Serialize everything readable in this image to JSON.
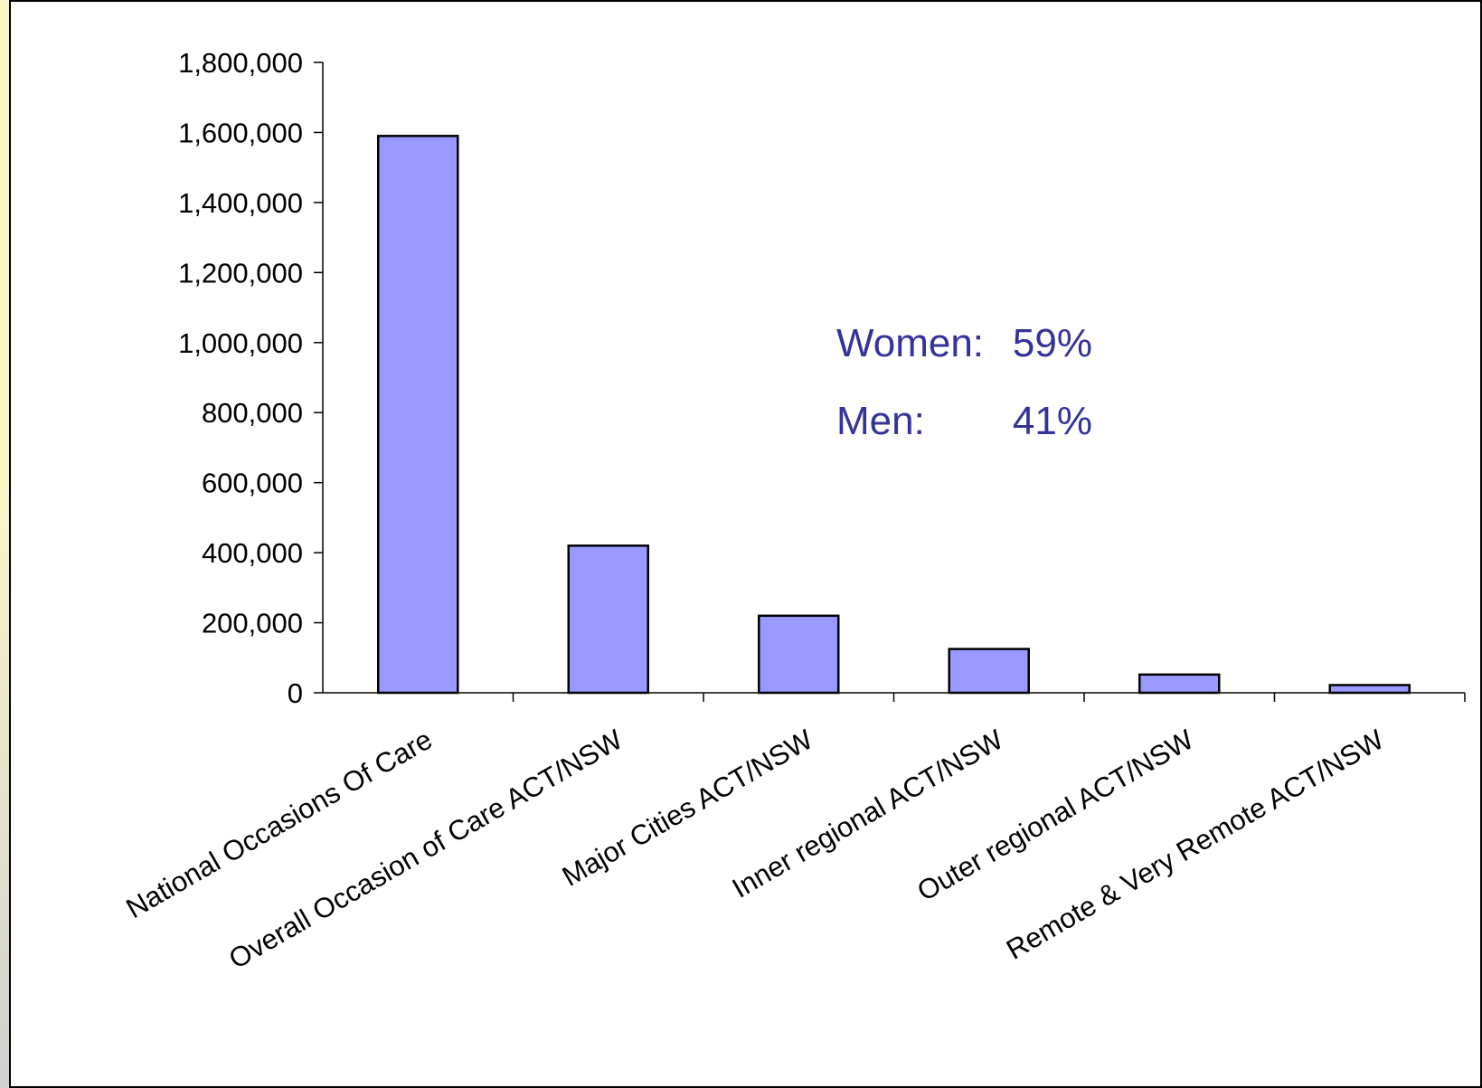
{
  "chart_data": {
    "type": "bar",
    "categories": [
      "National Occasions Of Care",
      "Overall Occasion of Care ACT/NSW",
      "Major Cities ACT/NSW",
      "Inner regional ACT/NSW",
      "Outer regional ACT/NSW",
      "Remote & Very Remote ACT/NSW"
    ],
    "values": [
      1590000,
      420000,
      220000,
      125000,
      52000,
      22000
    ],
    "ylim": [
      0,
      1800000
    ],
    "yticks": [
      0,
      200000,
      400000,
      600000,
      800000,
      1000000,
      1200000,
      1400000,
      1600000,
      1800000
    ],
    "ytick_labels": [
      "0",
      "200,000",
      "400,000",
      "600,000",
      "800,000",
      "1,000,000",
      "1,200,000",
      "1,400,000",
      "1,600,000",
      "1,800,000"
    ],
    "bar_color": "#9999ff",
    "grid": false,
    "annotations": {
      "women_label": "Women:",
      "women_value": "59%",
      "men_label": "Men:",
      "men_value": "41%"
    }
  },
  "colors": {
    "annotation": "#333399",
    "bar_fill": "#9999ff",
    "background": "#ffffff",
    "border": "#fdf6c8"
  }
}
